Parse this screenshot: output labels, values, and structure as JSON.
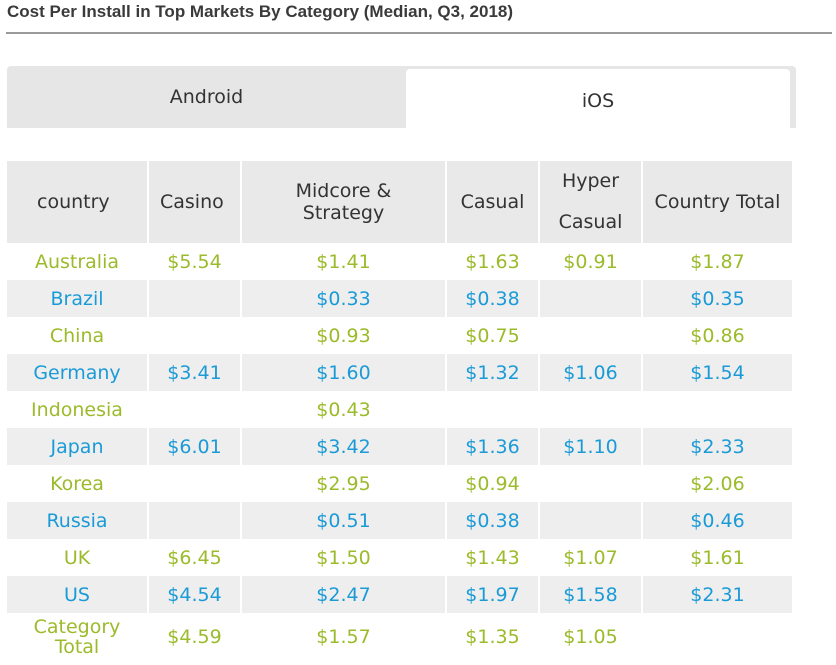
{
  "title": "Cost Per Install in Top Markets By Category (Median, Q3, 2018)",
  "tabs": [
    {
      "label": "Android",
      "active": false
    },
    {
      "label": "iOS",
      "active": true
    }
  ],
  "colors": {
    "odd_row_text": "#9bbb2a",
    "even_row_text": "#1a9bd7",
    "header_bg": "#e9e9e9",
    "even_row_bg": "#eeeeee"
  },
  "table": {
    "headers": {
      "country": "country",
      "casino": "Casino",
      "midcore_line1": "Midcore &",
      "midcore_line2": "Strategy",
      "casual": "Casual",
      "hyper_line1": "Hyper",
      "hyper_line2": "Casual",
      "total": "Country Total"
    },
    "rows": [
      {
        "country": "Australia",
        "casino": "$5.54",
        "midcore": "$1.41",
        "casual": "$1.63",
        "hyper": "$0.91",
        "total": "$1.87"
      },
      {
        "country": "Brazil",
        "casino": "",
        "midcore": "$0.33",
        "casual": "$0.38",
        "hyper": "",
        "total": "$0.35"
      },
      {
        "country": "China",
        "casino": "",
        "midcore": "$0.93",
        "casual": "$0.75",
        "hyper": "",
        "total": "$0.86"
      },
      {
        "country": "Germany",
        "casino": "$3.41",
        "midcore": "$1.60",
        "casual": "$1.32",
        "hyper": "$1.06",
        "total": "$1.54"
      },
      {
        "country": "Indonesia",
        "casino": "",
        "midcore": "$0.43",
        "casual": "",
        "hyper": "",
        "total": ""
      },
      {
        "country": "Japan",
        "casino": "$6.01",
        "midcore": "$3.42",
        "casual": "$1.36",
        "hyper": "$1.10",
        "total": "$2.33"
      },
      {
        "country": "Korea",
        "casino": "",
        "midcore": "$2.95",
        "casual": "$0.94",
        "hyper": "",
        "total": "$2.06"
      },
      {
        "country": "Russia",
        "casino": "",
        "midcore": "$0.51",
        "casual": "$0.38",
        "hyper": "",
        "total": "$0.46"
      },
      {
        "country": "UK",
        "casino": "$6.45",
        "midcore": "$1.50",
        "casual": "$1.43",
        "hyper": "$1.07",
        "total": "$1.61"
      },
      {
        "country": "US",
        "casino": "$4.54",
        "midcore": "$2.47",
        "casual": "$1.97",
        "hyper": "$1.58",
        "total": "$2.31"
      }
    ],
    "category_total": {
      "label_line1": "Category",
      "label_line2": "Total",
      "casino": "$4.59",
      "midcore": "$1.57",
      "casual": "$1.35",
      "hyper": "$1.05",
      "total": ""
    }
  }
}
